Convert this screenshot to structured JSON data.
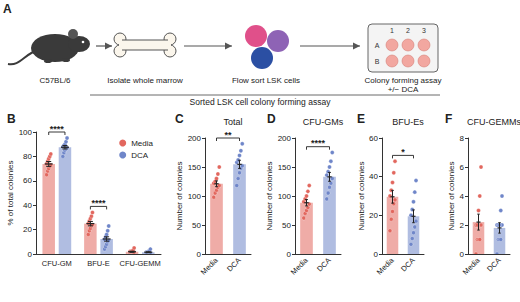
{
  "schematic": {
    "panel_label": "A",
    "steps": [
      {
        "label": [
          "C57BL/6"
        ]
      },
      {
        "label": [
          "Isolate whole marrow"
        ]
      },
      {
        "label": [
          "Flow sort LSK cells"
        ]
      },
      {
        "label": [
          "Colony forming assay",
          "+/− DCA"
        ]
      }
    ],
    "plate_columns": [
      "1",
      "2",
      "3"
    ],
    "plate_rows": [
      "A",
      "B"
    ]
  },
  "section_title": "Sorted LSK cell colony forming assay",
  "chart_data": [
    {
      "type": "bar",
      "panel_label": "B",
      "y_label": "% of total colonies",
      "categories": [
        "CFU-GM",
        "BFU-E",
        "CFU-GEMM"
      ],
      "series": [
        {
          "name": "Media",
          "color": "#e2675e",
          "values": [
            73.8,
            24.9,
            1.85
          ],
          "errors": [
            2,
            1.8,
            0.45
          ],
          "points": [
            [
              65,
              68,
              70,
              72,
              73,
              74,
              76,
              78,
              80,
              82
            ],
            [
              16,
              19,
              21,
              23,
              24,
              25,
              27,
              29,
              31,
              34
            ],
            [
              0,
              0.5,
              1,
              1,
              1.5,
              2,
              2,
              2.5,
              3,
              5
            ]
          ]
        },
        {
          "name": "DCA",
          "color": "#6f86c9",
          "values": [
            87.5,
            12.3,
            1.45
          ],
          "errors": [
            1.4,
            1.8,
            0.37
          ],
          "points": [
            [
              80,
              83,
              85,
              86,
              87,
              88,
              89,
              90,
              92,
              95
            ],
            [
              4,
              6,
              8,
              10,
              11,
              12,
              14,
              16,
              19,
              23
            ],
            [
              0,
              0.5,
              0.5,
              1,
              1,
              1.5,
              1.5,
              2,
              2.5,
              4
            ]
          ]
        }
      ],
      "significance": [
        {
          "categories": [
            "CFU-GM"
          ],
          "label": "****"
        },
        {
          "categories": [
            "BFU-E"
          ],
          "label": "****"
        }
      ],
      "ylim": [
        0,
        100
      ],
      "yticks": [
        0,
        20,
        40,
        60,
        80,
        100
      ],
      "grid": false,
      "legend": "top-right",
      "marker": "circle"
    },
    {
      "type": "bar",
      "panel_label": "C",
      "title": "Total",
      "y_label": "Number of colonies",
      "categories": [
        "Media",
        "DCA"
      ],
      "values": [
        121.1,
        154.6
      ],
      "errors": [
        5,
        7
      ],
      "points": [
        [
          98,
          105,
          110,
          115,
          118,
          122,
          125,
          130,
          138,
          150
        ],
        [
          118,
          130,
          140,
          148,
          152,
          158,
          162,
          170,
          178,
          190
        ]
      ],
      "colors": [
        "#e2675e",
        "#6f86c9"
      ],
      "significance": [
        {
          "categories": [
            "Media",
            "DCA"
          ],
          "label": "**"
        }
      ],
      "ylim": [
        0,
        200
      ],
      "yticks": [
        0,
        50,
        100,
        150,
        200
      ],
      "grid": false,
      "marker": "circle"
    },
    {
      "type": "bar",
      "panel_label": "D",
      "title": "CFU-GMs",
      "y_label": "Number of colonies",
      "categories": [
        "Media",
        "DCA"
      ],
      "values": [
        88.4,
        133
      ],
      "errors": [
        5.5,
        7.6
      ],
      "points": [
        [
          62,
          70,
          75,
          80,
          86,
          90,
          95,
          100,
          108,
          118
        ],
        [
          95,
          105,
          115,
          122,
          130,
          136,
          142,
          150,
          160,
          175
        ]
      ],
      "colors": [
        "#e2675e",
        "#6f86c9"
      ],
      "significance": [
        {
          "categories": [
            "Media",
            "DCA"
          ],
          "label": "****"
        }
      ],
      "ylim": [
        0,
        200
      ],
      "yticks": [
        0,
        50,
        100,
        150,
        200
      ],
      "grid": false,
      "marker": "circle"
    },
    {
      "type": "bar",
      "panel_label": "E",
      "title": "BFU-Es",
      "y_label": "Number of colonies",
      "categories": [
        "Media",
        "DCA"
      ],
      "values": [
        29.6,
        19.5
      ],
      "errors": [
        3.3,
        3.3
      ],
      "points": [
        [
          12,
          18,
          22,
          26,
          28,
          30,
          33,
          37,
          42,
          48
        ],
        [
          5,
          8,
          11,
          14,
          17,
          20,
          23,
          27,
          32,
          38
        ]
      ],
      "colors": [
        "#e2675e",
        "#6f86c9"
      ],
      "significance": [
        {
          "categories": [
            "Media",
            "DCA"
          ],
          "label": "*"
        }
      ],
      "ylim": [
        0,
        60
      ],
      "yticks": [
        0,
        20,
        40,
        60
      ],
      "grid": false,
      "marker": "circle"
    },
    {
      "type": "bar",
      "panel_label": "F",
      "title": "CFU-GEMMs",
      "y_label": "Number of colonies",
      "categories": [
        "Media",
        "DCA"
      ],
      "values": [
        2.2,
        1.8
      ],
      "errors": [
        0.55,
        0.36
      ],
      "points": [
        [
          0,
          1,
          1,
          1,
          2,
          2,
          2,
          3,
          4,
          6
        ],
        [
          0,
          1,
          1,
          1,
          2,
          2,
          2,
          2,
          3,
          4
        ]
      ],
      "colors": [
        "#e2675e",
        "#6f86c9"
      ],
      "ylim": [
        0,
        8
      ],
      "yticks": [
        0,
        2,
        4,
        6,
        8
      ],
      "grid": false,
      "marker": "circle"
    }
  ]
}
